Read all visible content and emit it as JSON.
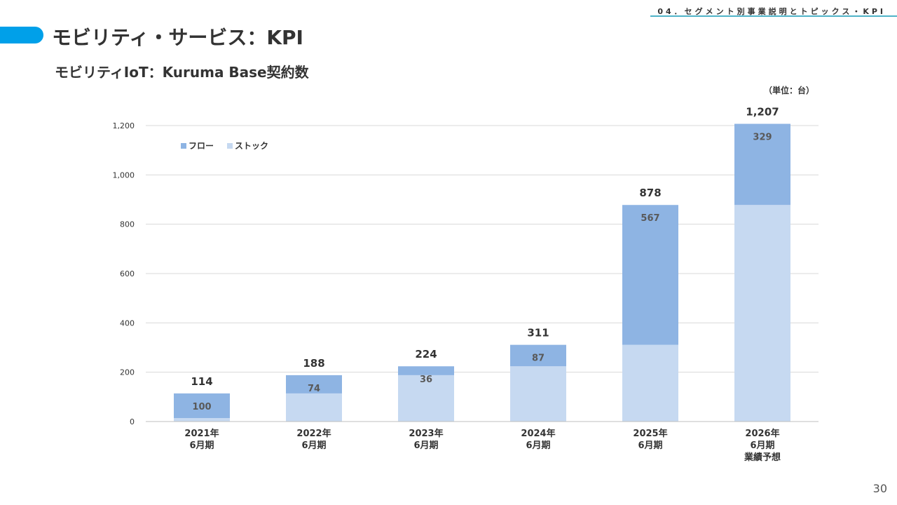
{
  "header": {
    "section": "04．セグメント別事業説明とトピックス・KPI",
    "title": "モビリティ・サービス：KPI",
    "subtitle": "モビリティIoT：Kuruma Base契約数",
    "unit": "（単位：台）",
    "page_number": "30"
  },
  "colors": {
    "accent": "#00a0e9",
    "flow": "#8eb4e3",
    "stock": "#c6d9f1",
    "grid": "#d9d9d9"
  },
  "chart_data": {
    "type": "bar",
    "stacked": true,
    "categories": [
      [
        "2021年",
        "6月期"
      ],
      [
        "2022年",
        "6月期"
      ],
      [
        "2023年",
        "6月期"
      ],
      [
        "2024年",
        "6月期"
      ],
      [
        "2025年",
        "6月期"
      ],
      [
        "2026年",
        "6月期",
        "業績予想"
      ]
    ],
    "series": [
      {
        "name": "ストック",
        "values": [
          14,
          114,
          188,
          224,
          311,
          878
        ],
        "color": "#c6d9f1"
      },
      {
        "name": "フロー",
        "values": [
          100,
          74,
          36,
          87,
          567,
          329
        ],
        "color": "#8eb4e3"
      }
    ],
    "totals": [
      114,
      188,
      224,
      311,
      878,
      1207
    ],
    "flow_labels": [
      "100",
      "74",
      "36",
      "87",
      "567",
      "329"
    ],
    "total_labels": [
      "114",
      "188",
      "224",
      "311",
      "878",
      "1,207"
    ],
    "ylim": [
      0,
      1200
    ],
    "yticks": [
      0,
      200,
      400,
      600,
      800,
      1000,
      1200
    ],
    "ytick_labels": [
      "0",
      "200",
      "400",
      "600",
      "800",
      "1,000",
      "1,200"
    ],
    "legend": [
      {
        "name": "フロー",
        "color": "#8eb4e3"
      },
      {
        "name": "ストック",
        "color": "#c6d9f1"
      }
    ],
    "legend_position": "top-left",
    "grid": true
  }
}
